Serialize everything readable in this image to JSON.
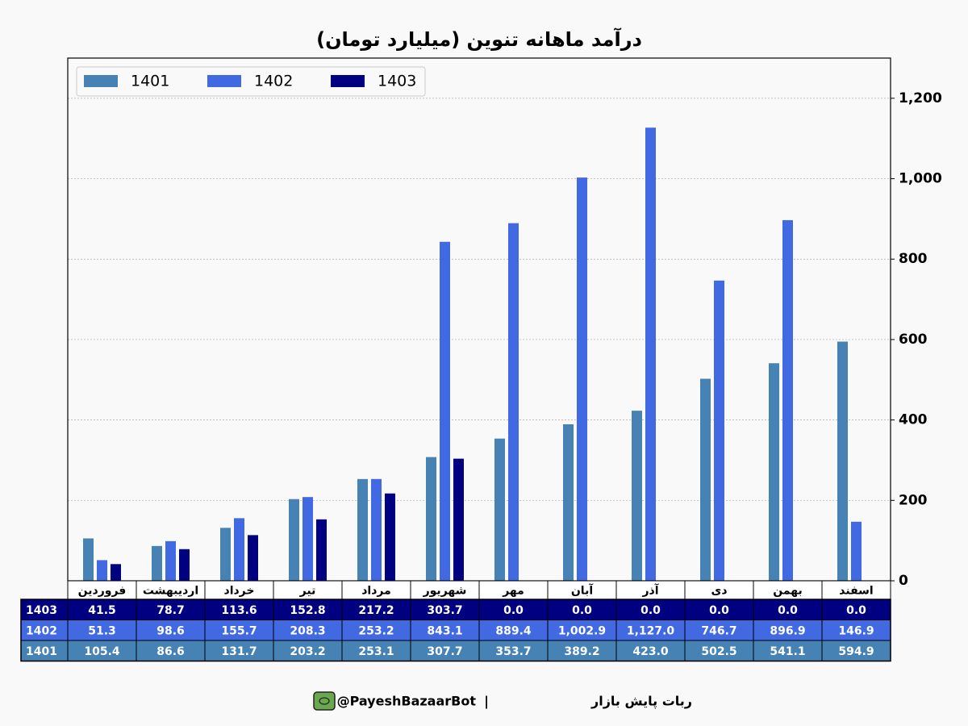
{
  "chart_data": {
    "type": "bar",
    "title": "درآمد ماهانه تنوین (میلیارد تومان)",
    "categories": [
      "فروردین",
      "اردیبهشت",
      "خرداد",
      "تیر",
      "مرداد",
      "شهریور",
      "مهر",
      "آبان",
      "آذر",
      "دی",
      "بهمن",
      "اسفند"
    ],
    "series": [
      {
        "name": "1401",
        "color": "#4682b4",
        "values": [
          105.4,
          86.6,
          131.7,
          203.2,
          253.1,
          307.7,
          353.7,
          389.2,
          423.0,
          502.5,
          541.1,
          594.9
        ],
        "value_labels": [
          "105.4",
          "86.6",
          "131.7",
          "203.2",
          "253.1",
          "307.7",
          "353.7",
          "389.2",
          "423.0",
          "502.5",
          "541.1",
          "594.9"
        ]
      },
      {
        "name": "1402",
        "color": "#4169e1",
        "values": [
          51.3,
          98.6,
          155.7,
          208.3,
          253.2,
          843.1,
          889.4,
          1002.9,
          1127.0,
          746.7,
          896.9,
          146.9
        ],
        "value_labels": [
          "51.3",
          "98.6",
          "155.7",
          "208.3",
          "253.2",
          "843.1",
          "889.4",
          "1,002.9",
          "1,127.0",
          "746.7",
          "896.9",
          "146.9"
        ]
      },
      {
        "name": "1403",
        "color": "#000080",
        "values": [
          41.5,
          78.7,
          113.6,
          152.8,
          217.2,
          303.7,
          0.0,
          0.0,
          0.0,
          0.0,
          0.0,
          0.0
        ],
        "value_labels": [
          "41.5",
          "78.7",
          "113.6",
          "152.8",
          "217.2",
          "303.7",
          "0.0",
          "0.0",
          "0.0",
          "0.0",
          "0.0",
          "0.0"
        ]
      }
    ],
    "ylim": [
      0,
      1300
    ],
    "yticks": [
      0,
      200,
      400,
      600,
      800,
      {
        "value": 1000,
        "label": "1,000"
      },
      {
        "value": 1200,
        "label": "1,200"
      }
    ],
    "grid": true,
    "legend": "upper-left"
  },
  "footer": {
    "text": "ربات پایش بازار",
    "separator": "|",
    "handle": "@PayeshBazaarBot"
  }
}
